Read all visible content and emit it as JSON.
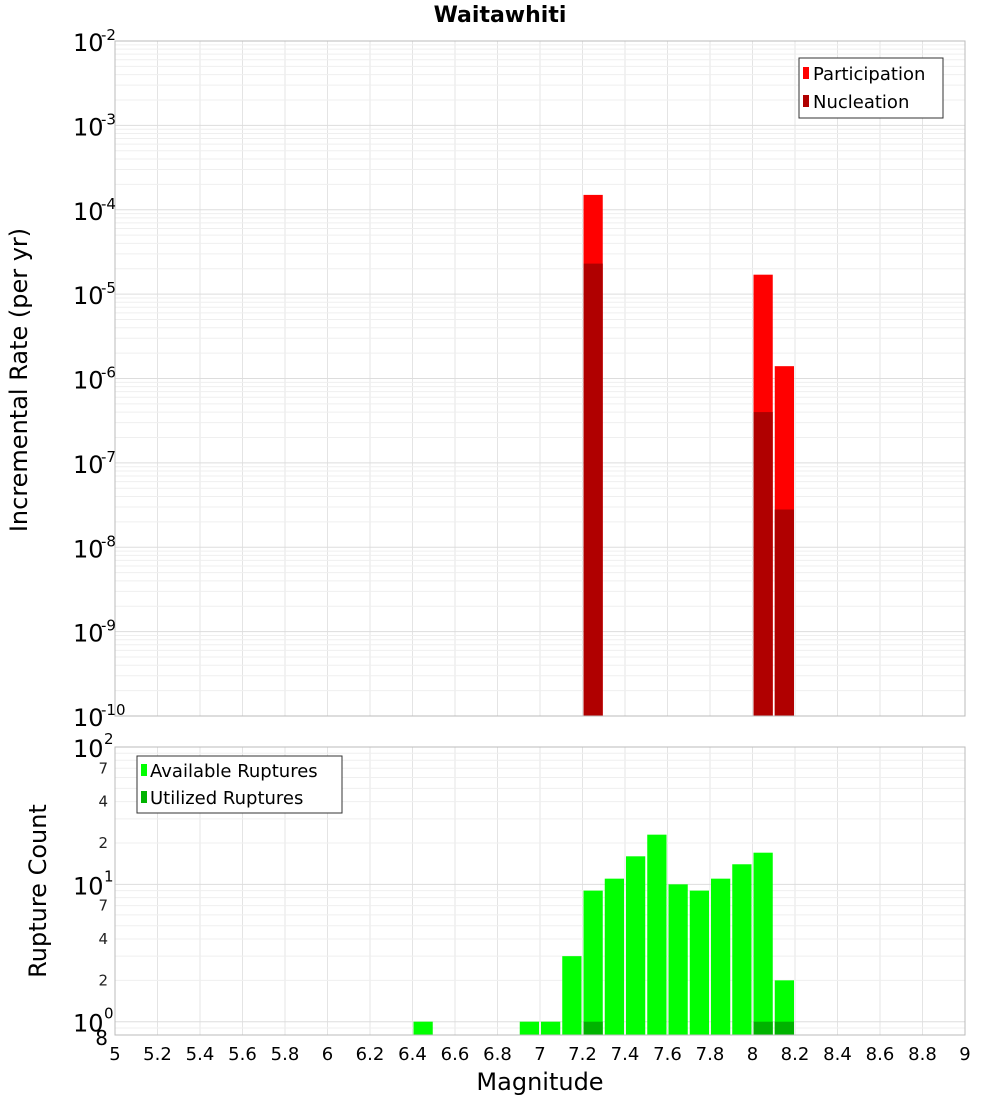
{
  "chart_data": [
    {
      "type": "bar",
      "title": "Waitawhiti",
      "ylabel": "Incremental Rate (per yr)",
      "yscale": "log",
      "ylim": [
        1e-10,
        0.01
      ],
      "xlim": [
        5,
        9
      ],
      "bar_width": 0.1,
      "grid": true,
      "legend_position": "top-right",
      "y_ticks": [
        {
          "base": "10",
          "exp": "-2"
        },
        {
          "base": "10",
          "exp": "-3"
        },
        {
          "base": "10",
          "exp": "-4"
        },
        {
          "base": "10",
          "exp": "-5"
        },
        {
          "base": "10",
          "exp": "-6"
        },
        {
          "base": "10",
          "exp": "-7"
        },
        {
          "base": "10",
          "exp": "-8"
        },
        {
          "base": "10",
          "exp": "-9"
        },
        {
          "base": "10",
          "exp": "-10"
        }
      ],
      "series": [
        {
          "name": "Participation",
          "color": "#ff0000",
          "x": [
            7.25,
            8.05,
            8.15
          ],
          "values": [
            0.00015,
            1.7e-05,
            1.4e-06
          ]
        },
        {
          "name": "Nucleation",
          "color": "#b00000",
          "x": [
            7.25,
            8.05,
            8.15
          ],
          "values": [
            2.3e-05,
            4e-07,
            2.8e-08
          ]
        }
      ]
    },
    {
      "type": "bar",
      "ylabel": "Rupture Count",
      "xlabel": "Magnitude",
      "yscale": "log",
      "ylim": [
        0.8,
        100
      ],
      "xlim": [
        5,
        9
      ],
      "bar_width": 0.1,
      "grid": true,
      "legend_position": "top-left",
      "x_ticks": [
        "5",
        "5.2",
        "5.4",
        "5.6",
        "5.8",
        "6",
        "6.2",
        "6.4",
        "6.6",
        "6.8",
        "7",
        "7.2",
        "7.4",
        "7.6",
        "7.8",
        "8",
        "8.2",
        "8.4",
        "8.6",
        "8.8",
        "9"
      ],
      "y_ticks": [
        {
          "base": "10",
          "exp": "2"
        },
        {
          "base": "10",
          "exp": "1"
        },
        {
          "base": "10",
          "exp": "0"
        }
      ],
      "y_minor_ticks": [
        "7",
        "4",
        "2",
        "7",
        "4",
        "2",
        "8"
      ],
      "series": [
        {
          "name": "Available Ruptures",
          "color": "#00ff00",
          "x": [
            6.45,
            6.95,
            7.05,
            7.15,
            7.25,
            7.35,
            7.45,
            7.55,
            7.65,
            7.75,
            7.85,
            7.95,
            8.05,
            8.15
          ],
          "values": [
            1,
            1,
            1,
            3,
            9,
            11,
            16,
            23,
            10,
            9,
            11,
            14,
            17,
            2
          ]
        },
        {
          "name": "Utilized Ruptures",
          "color": "#00b300",
          "x": [
            7.25,
            8.05,
            8.15
          ],
          "values": [
            1,
            1,
            1
          ]
        }
      ]
    }
  ]
}
